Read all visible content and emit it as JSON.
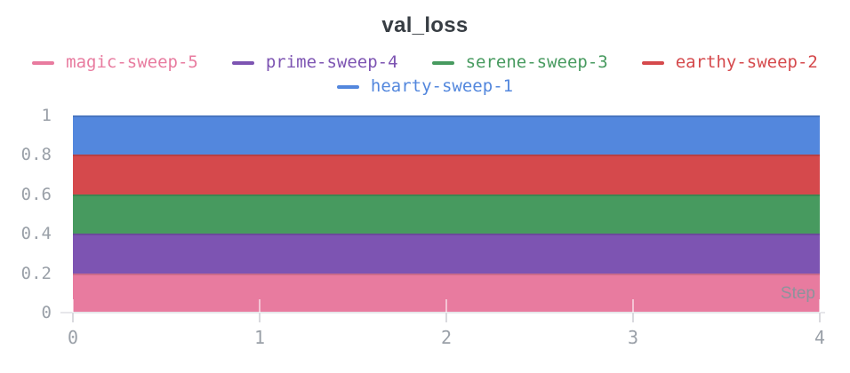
{
  "chart": {
    "title": "val_loss",
    "step_label": "Step"
  },
  "legend": {
    "rows": [
      [
        {
          "label": "magic-sweep-5",
          "color": "#E87B9F"
        },
        {
          "label": "prime-sweep-4",
          "color": "#7D54B2"
        },
        {
          "label": "serene-sweep-3",
          "color": "#479A5F"
        },
        {
          "label": "earthy-sweep-2",
          "color": "#D5494C"
        }
      ],
      [
        {
          "label": "hearty-sweep-1",
          "color": "#5387DD"
        }
      ]
    ]
  },
  "chart_data": {
    "type": "area",
    "title": "val_loss",
    "xlabel": "Step",
    "ylabel": "",
    "xlim": [
      0,
      4
    ],
    "ylim": [
      0,
      1
    ],
    "grid": false,
    "legend_position": "top-two-rows",
    "xticks": [
      {
        "value": 0,
        "label": "0"
      },
      {
        "value": 1,
        "label": "1"
      },
      {
        "value": 2,
        "label": "2"
      },
      {
        "value": 3,
        "label": "3"
      },
      {
        "value": 4,
        "label": "4"
      }
    ],
    "yticks": [
      {
        "value": 0,
        "label": "0"
      },
      {
        "value": 0.2,
        "label": "0.2"
      },
      {
        "value": 0.4,
        "label": "0.4"
      },
      {
        "value": 0.6,
        "label": "0.6"
      },
      {
        "value": 0.8,
        "label": "0.8"
      },
      {
        "value": 1,
        "label": "1"
      }
    ],
    "series": [
      {
        "name": "magic-sweep-5",
        "color": "#E87B9F",
        "x_range": [
          0,
          4
        ],
        "band": [
          0.0,
          0.2
        ]
      },
      {
        "name": "prime-sweep-4",
        "color": "#7D54B2",
        "x_range": [
          0,
          4
        ],
        "band": [
          0.2,
          0.4
        ]
      },
      {
        "name": "serene-sweep-3",
        "color": "#479A5F",
        "x_range": [
          0,
          4
        ],
        "band": [
          0.4,
          0.6
        ]
      },
      {
        "name": "earthy-sweep-2",
        "color": "#D5494C",
        "x_range": [
          0,
          4
        ],
        "band": [
          0.6,
          0.8
        ]
      },
      {
        "name": "hearty-sweep-1",
        "color": "#5387DD",
        "x_range": [
          0,
          4
        ],
        "band": [
          0.8,
          1.0
        ]
      }
    ]
  }
}
